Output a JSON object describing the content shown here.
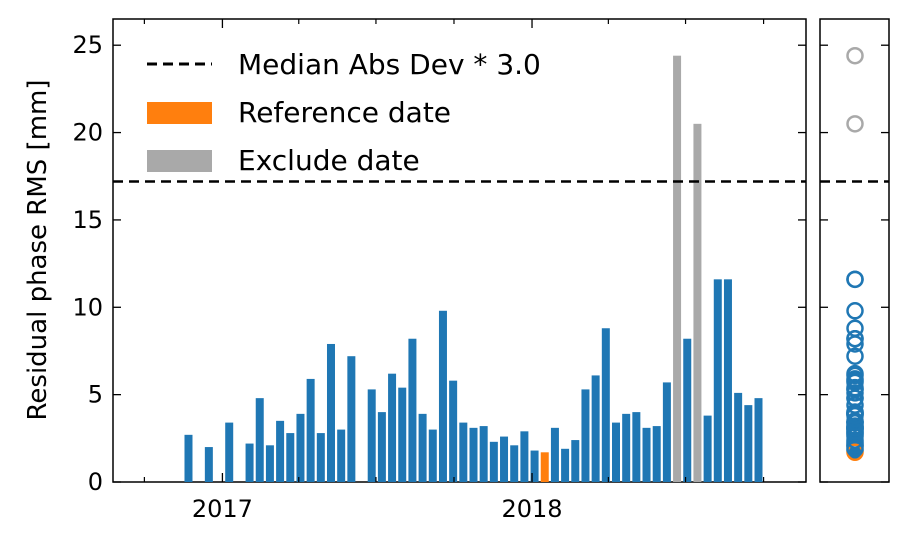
{
  "chart_data": {
    "type": "bar",
    "ylabel": "Residual phase RMS [mm]",
    "ylim": [
      0,
      26.5
    ],
    "y_ticks": [
      "0",
      "5",
      "10",
      "15",
      "20",
      "25"
    ],
    "x_ticks": [
      "2017",
      "2018"
    ],
    "threshold": 17.2,
    "legend": {
      "placement": "top-left",
      "threshold_label": "Median Abs Dev * 3.0",
      "reference_label": "Reference date",
      "exclude_label": "Exclude date"
    },
    "colors": {
      "normal": "#1f77b4",
      "reference": "#ff7f0e",
      "exclude": "#a9a9a9",
      "threshold": "#000000"
    },
    "series": [
      {
        "dates": [
          "2016-11-22",
          "2016-12-16",
          "2017-01-09",
          "2017-02-02",
          "2017-02-14",
          "2017-02-26",
          "2017-03-10",
          "2017-03-22",
          "2017-04-03",
          "2017-04-15",
          "2017-04-27",
          "2017-05-09",
          "2017-05-21",
          "2017-06-02",
          "2017-06-26",
          "2017-07-08",
          "2017-07-20",
          "2017-08-01",
          "2017-08-13",
          "2017-08-25",
          "2017-09-06",
          "2017-09-18",
          "2017-09-30",
          "2017-10-12",
          "2017-10-24",
          "2017-11-05",
          "2017-11-17",
          "2017-11-29",
          "2017-12-11",
          "2017-12-23",
          "2018-01-04",
          "2018-01-16",
          "2018-01-28",
          "2018-02-09",
          "2018-02-21",
          "2018-03-05",
          "2018-03-17",
          "2018-03-29",
          "2018-04-10",
          "2018-04-22",
          "2018-05-04",
          "2018-05-16",
          "2018-05-28",
          "2018-06-09",
          "2018-06-21",
          "2018-07-03",
          "2018-07-15",
          "2018-07-27",
          "2018-08-08",
          "2018-08-20",
          "2018-09-01",
          "2018-09-13",
          "2018-09-25"
        ],
        "values": [
          2.7,
          2.0,
          3.4,
          2.2,
          4.8,
          2.1,
          3.5,
          2.8,
          3.9,
          5.9,
          2.8,
          7.9,
          3.0,
          7.2,
          5.3,
          4.0,
          6.2,
          5.4,
          8.2,
          3.9,
          3.0,
          9.8,
          5.8,
          3.4,
          3.1,
          3.2,
          2.3,
          2.6,
          2.1,
          2.9,
          1.8,
          1.7,
          3.1,
          1.9,
          2.4,
          5.3,
          6.1,
          8.8,
          3.4,
          3.9,
          4.0,
          3.1,
          3.2,
          5.7,
          24.4,
          8.2,
          20.5,
          3.8,
          11.6,
          11.6,
          5.1,
          4.4,
          4.8
        ],
        "status": [
          "n",
          "n",
          "n",
          "n",
          "n",
          "n",
          "n",
          "n",
          "n",
          "n",
          "n",
          "n",
          "n",
          "n",
          "n",
          "n",
          "n",
          "n",
          "n",
          "n",
          "n",
          "n",
          "n",
          "n",
          "n",
          "n",
          "n",
          "n",
          "n",
          "n",
          "n",
          "r",
          "n",
          "n",
          "n",
          "n",
          "n",
          "n",
          "n",
          "n",
          "n",
          "n",
          "n",
          "n",
          "e",
          "n",
          "e",
          "n",
          "n",
          "n",
          "n",
          "n",
          "n"
        ]
      }
    ]
  }
}
